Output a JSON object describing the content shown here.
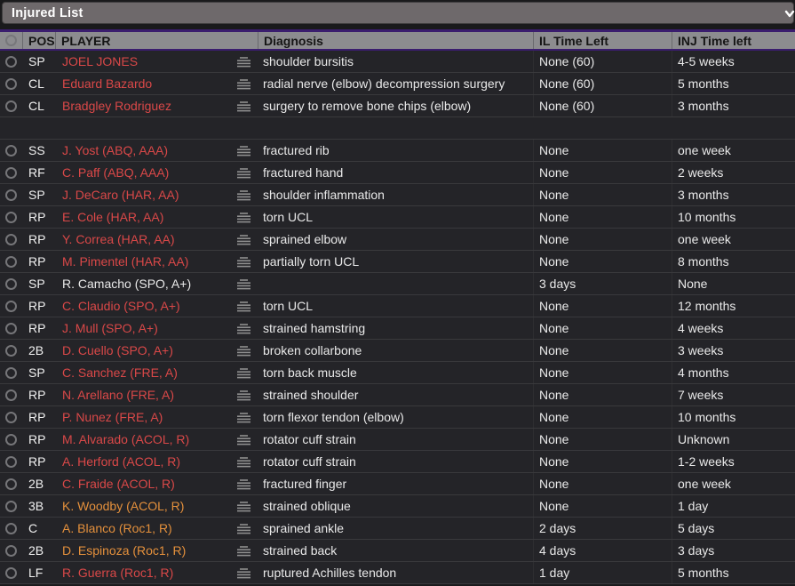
{
  "window": {
    "title": "Injured List",
    "titlebar_icon": "chevron-down-icon"
  },
  "table": {
    "columns": [
      "POS",
      "PLAYER",
      "Diagnosis",
      "IL Time Left",
      "INJ Time left"
    ],
    "colors": {
      "header_bg": "#8c8c8f",
      "accent_purple": "#3a1d6e",
      "row_bg": "#242428",
      "name_red": "#d94848",
      "name_orange": "#e4903c",
      "name_white": "#e9e9e9"
    },
    "icons": {
      "row_select": "circle-radio-icon",
      "row_menu": "text-lines-menu-icon"
    },
    "rows": [
      {
        "pos": "SP",
        "player": "JOEL JONES",
        "name_color": "red",
        "diagnosis": "shoulder bursitis",
        "il": "None (60)",
        "inj": "4-5 weeks"
      },
      {
        "pos": "CL",
        "player": "Eduard Bazardo",
        "name_color": "red",
        "diagnosis": "radial nerve (elbow) decompression surgery",
        "il": "None (60)",
        "inj": "5 months"
      },
      {
        "pos": "CL",
        "player": "Bradgley Rodriguez",
        "name_color": "red",
        "diagnosis": "surgery to remove bone chips (elbow)",
        "il": "None (60)",
        "inj": "3 months"
      },
      {
        "blank": true
      },
      {
        "pos": "SS",
        "player": "J. Yost (ABQ, AAA)",
        "name_color": "red",
        "diagnosis": "fractured rib",
        "il": "None",
        "inj": "one week"
      },
      {
        "pos": "RF",
        "player": "C. Paff (ABQ, AAA)",
        "name_color": "red",
        "diagnosis": "fractured hand",
        "il": "None",
        "inj": "2 weeks"
      },
      {
        "pos": "SP",
        "player": "J. DeCaro (HAR, AA)",
        "name_color": "red",
        "diagnosis": "shoulder inflammation",
        "il": "None",
        "inj": "3 months"
      },
      {
        "pos": "RP",
        "player": "E. Cole (HAR, AA)",
        "name_color": "red",
        "diagnosis": "torn UCL",
        "il": "None",
        "inj": "10 months"
      },
      {
        "pos": "RP",
        "player": "Y. Correa (HAR, AA)",
        "name_color": "red",
        "diagnosis": "sprained elbow",
        "il": "None",
        "inj": "one week"
      },
      {
        "pos": "RP",
        "player": "M. Pimentel (HAR, AA)",
        "name_color": "red",
        "diagnosis": "partially torn UCL",
        "il": "None",
        "inj": "8 months"
      },
      {
        "pos": "SP",
        "player": "R. Camacho (SPO, A+)",
        "name_color": "white",
        "diagnosis": "",
        "il": "3 days",
        "inj": "None"
      },
      {
        "pos": "RP",
        "player": "C. Claudio (SPO, A+)",
        "name_color": "red",
        "diagnosis": "torn UCL",
        "il": "None",
        "inj": "12 months"
      },
      {
        "pos": "RP",
        "player": "J. Mull (SPO, A+)",
        "name_color": "red",
        "diagnosis": "strained hamstring",
        "il": "None",
        "inj": "4 weeks"
      },
      {
        "pos": "2B",
        "player": "D. Cuello (SPO, A+)",
        "name_color": "red",
        "diagnosis": "broken collarbone",
        "il": "None",
        "inj": "3 weeks"
      },
      {
        "pos": "SP",
        "player": "C. Sanchez (FRE, A)",
        "name_color": "red",
        "diagnosis": "torn back muscle",
        "il": "None",
        "inj": "4 months"
      },
      {
        "pos": "RP",
        "player": "N. Arellano (FRE, A)",
        "name_color": "red",
        "diagnosis": "strained shoulder",
        "il": "None",
        "inj": "7 weeks"
      },
      {
        "pos": "RP",
        "player": "P. Nunez (FRE, A)",
        "name_color": "red",
        "diagnosis": "torn flexor tendon (elbow)",
        "il": "None",
        "inj": "10 months"
      },
      {
        "pos": "RP",
        "player": "M. Alvarado (ACOL, R)",
        "name_color": "red",
        "diagnosis": "rotator cuff strain",
        "il": "None",
        "inj": "Unknown"
      },
      {
        "pos": "RP",
        "player": "A. Herford (ACOL, R)",
        "name_color": "red",
        "diagnosis": "rotator cuff strain",
        "il": "None",
        "inj": "1-2 weeks"
      },
      {
        "pos": "2B",
        "player": "C. Fraide (ACOL, R)",
        "name_color": "red",
        "diagnosis": "fractured finger",
        "il": "None",
        "inj": "one week"
      },
      {
        "pos": "3B",
        "player": "K. Woodby (ACOL, R)",
        "name_color": "orange",
        "diagnosis": "strained oblique",
        "il": "None",
        "inj": "1 day"
      },
      {
        "pos": "C",
        "player": "A. Blanco (Roc1, R)",
        "name_color": "orange",
        "diagnosis": "sprained ankle",
        "il": "2 days",
        "inj": "5 days"
      },
      {
        "pos": "2B",
        "player": "D. Espinoza (Roc1, R)",
        "name_color": "orange",
        "diagnosis": "strained back",
        "il": "4 days",
        "inj": "3 days"
      },
      {
        "pos": "LF",
        "player": "R. Guerra (Roc1, R)",
        "name_color": "red",
        "diagnosis": "ruptured Achilles tendon",
        "il": "1 day",
        "inj": "5 months"
      }
    ]
  }
}
